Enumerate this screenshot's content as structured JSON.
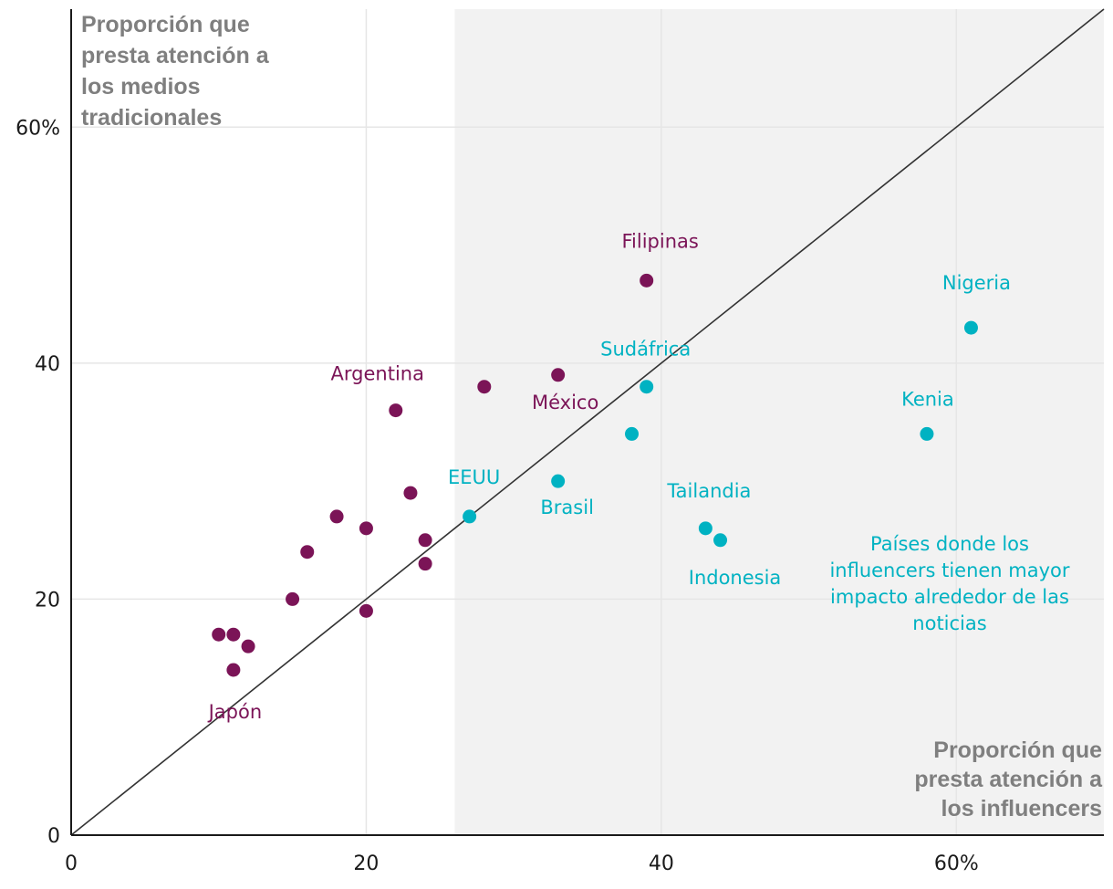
{
  "chart_data": {
    "type": "scatter",
    "x_label": [
      "Proporción que",
      "presta atención a",
      "los influencers"
    ],
    "y_label": [
      "Proporción que",
      "presta atención a",
      "los medios",
      "tradicionales"
    ],
    "xlim": [
      0,
      70
    ],
    "ylim": [
      0,
      70
    ],
    "x_ticks": [
      {
        "value": 0,
        "label": "0"
      },
      {
        "value": 20,
        "label": "20"
      },
      {
        "value": 40,
        "label": "40"
      },
      {
        "value": 60,
        "label": "60%"
      }
    ],
    "y_ticks": [
      {
        "value": 0,
        "label": "0"
      },
      {
        "value": 20,
        "label": "20"
      },
      {
        "value": 40,
        "label": "40"
      },
      {
        "value": 60,
        "label": "60%"
      }
    ],
    "grid": true,
    "reference_line": {
      "from": [
        0,
        0
      ],
      "to": [
        70,
        70
      ]
    },
    "shaded_region": {
      "x_from": 26,
      "x_to": 70
    },
    "annotation": [
      "Países donde los",
      "influencers tienen mayor",
      "impacto alrededor de las",
      "noticias"
    ],
    "colors": {
      "traditional": "#7b1457",
      "influencer": "#00b2c2",
      "shade": "#f2f2f2",
      "grid": "#e6e6e6",
      "line": "#333333"
    },
    "points": [
      {
        "x": 39,
        "y": 47,
        "group": "traditional",
        "label": "Filipinas"
      },
      {
        "x": 22,
        "y": 36,
        "group": "traditional",
        "label": "Argentina"
      },
      {
        "x": 33,
        "y": 39,
        "group": "traditional",
        "label": "México"
      },
      {
        "x": 11,
        "y": 14,
        "group": "traditional",
        "label": "Japón"
      },
      {
        "x": 28,
        "y": 38,
        "group": "traditional",
        "label": ""
      },
      {
        "x": 23,
        "y": 29,
        "group": "traditional",
        "label": ""
      },
      {
        "x": 18,
        "y": 27,
        "group": "traditional",
        "label": ""
      },
      {
        "x": 20,
        "y": 26,
        "group": "traditional",
        "label": ""
      },
      {
        "x": 24,
        "y": 25,
        "group": "traditional",
        "label": ""
      },
      {
        "x": 16,
        "y": 24,
        "group": "traditional",
        "label": ""
      },
      {
        "x": 24,
        "y": 23,
        "group": "traditional",
        "label": ""
      },
      {
        "x": 15,
        "y": 20,
        "group": "traditional",
        "label": ""
      },
      {
        "x": 20,
        "y": 19,
        "group": "traditional",
        "label": ""
      },
      {
        "x": 10,
        "y": 17,
        "group": "traditional",
        "label": ""
      },
      {
        "x": 11,
        "y": 17,
        "group": "traditional",
        "label": ""
      },
      {
        "x": 12,
        "y": 16,
        "group": "traditional",
        "label": ""
      },
      {
        "x": 61,
        "y": 43,
        "group": "influencer",
        "label": "Nigeria"
      },
      {
        "x": 39,
        "y": 38,
        "group": "influencer",
        "label": "Sudáfrica"
      },
      {
        "x": 58,
        "y": 34,
        "group": "influencer",
        "label": "Kenia"
      },
      {
        "x": 38,
        "y": 34,
        "group": "influencer",
        "label": ""
      },
      {
        "x": 33,
        "y": 30,
        "group": "influencer",
        "label": "Brasil"
      },
      {
        "x": 27,
        "y": 27,
        "group": "influencer",
        "label": "EEUU"
      },
      {
        "x": 43,
        "y": 26,
        "group": "influencer",
        "label": "Tailandia"
      },
      {
        "x": 44,
        "y": 25,
        "group": "influencer",
        "label": "Indonesia"
      }
    ]
  }
}
